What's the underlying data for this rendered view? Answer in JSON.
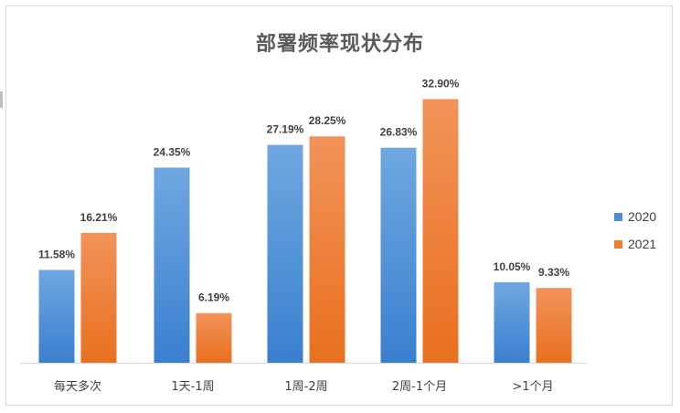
{
  "chart_data": {
    "type": "bar",
    "title": "部署频率现状分布",
    "categories": [
      "每天多次",
      "1天-1周",
      "1周-2周",
      "2周-1个月",
      ">1个月"
    ],
    "series": [
      {
        "name": "2020",
        "values": [
          11.58,
          24.35,
          27.19,
          26.83,
          10.05
        ],
        "labels": [
          "11.58%",
          "24.35%",
          "27.19%",
          "26.83%",
          "10.05%"
        ],
        "color": "#4a90d9"
      },
      {
        "name": "2021",
        "values": [
          16.21,
          6.19,
          28.25,
          32.9,
          9.33
        ],
        "labels": [
          "16.21%",
          "6.19%",
          "28.25%",
          "32.90%",
          "9.33%"
        ],
        "color": "#ed7d31"
      }
    ],
    "ylim": [
      0,
      35
    ],
    "grid": false,
    "legend_position": "right"
  }
}
